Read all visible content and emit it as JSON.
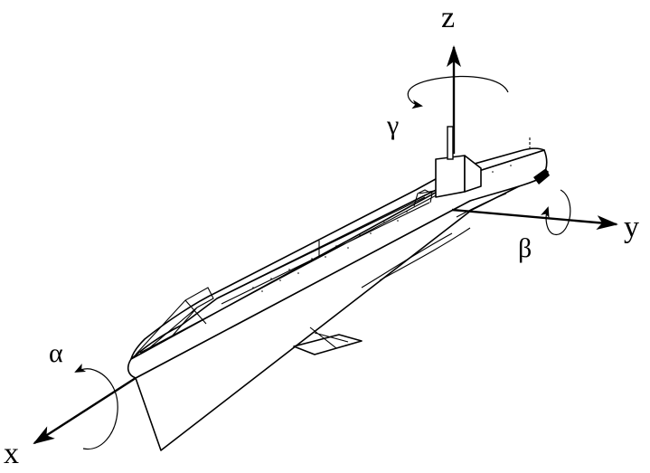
{
  "axes": {
    "x": {
      "label": "x"
    },
    "y": {
      "label": "y"
    },
    "z": {
      "label": "z"
    }
  },
  "rotations": {
    "roll": {
      "label": "α"
    },
    "pitch": {
      "label": "β"
    },
    "yaw": {
      "label": "γ"
    }
  },
  "colors": {
    "ink": "#000000",
    "background": "#ffffff"
  }
}
